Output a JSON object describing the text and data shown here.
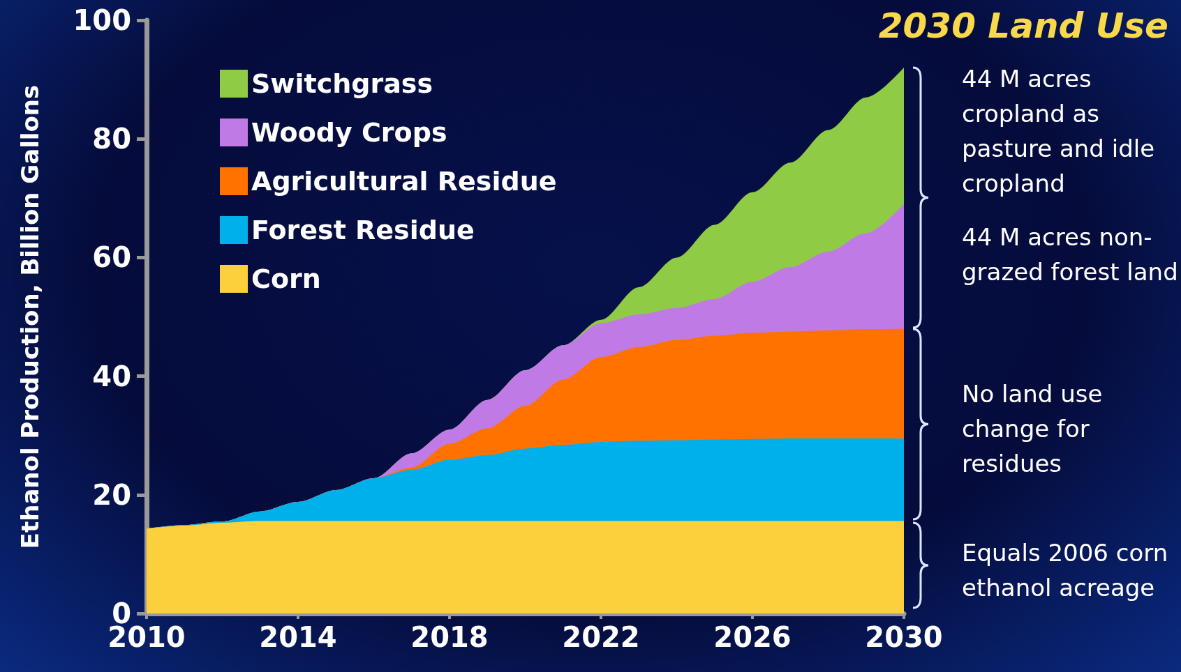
{
  "chart_data": {
    "type": "area",
    "stacked": true,
    "title": "2030 Land Use",
    "ylabel": "Ethanol Production, Billion Gallons",
    "x": [
      2010,
      2011,
      2012,
      2013,
      2014,
      2015,
      2016,
      2017,
      2018,
      2019,
      2020,
      2021,
      2022,
      2023,
      2024,
      2025,
      2026,
      2027,
      2028,
      2029,
      2030
    ],
    "series": [
      {
        "name": "Corn",
        "color": "#fcd03c",
        "values": [
          14.3,
          14.8,
          15.3,
          15.6,
          15.6,
          15.6,
          15.6,
          15.6,
          15.6,
          15.6,
          15.6,
          15.6,
          15.6,
          15.6,
          15.6,
          15.6,
          15.6,
          15.6,
          15.6,
          15.6,
          15.6
        ]
      },
      {
        "name": "Forest Residue",
        "color": "#00b0ea",
        "values": [
          0,
          0.1,
          0.2,
          1.6,
          3.2,
          5.2,
          7.2,
          8.6,
          10.3,
          11.1,
          12.2,
          12.8,
          13.3,
          13.5,
          13.6,
          13.7,
          13.8,
          13.9,
          13.9,
          13.9,
          13.9
        ]
      },
      {
        "name": "Agricultural Residue",
        "color": "#ff7200",
        "values": [
          0,
          0,
          0,
          0,
          0,
          0,
          0,
          0.4,
          2.7,
          4.5,
          7.2,
          11.0,
          14.3,
          15.8,
          16.9,
          17.5,
          17.9,
          18.0,
          18.2,
          18.4,
          18.5
        ]
      },
      {
        "name": "Woody Crops",
        "color": "#bf7ae6",
        "values": [
          0,
          0,
          0,
          0,
          0,
          0,
          0,
          2.4,
          2.4,
          4.8,
          6.0,
          5.8,
          5.7,
          5.5,
          5.4,
          6.2,
          8.6,
          10.9,
          13.3,
          16.2,
          21.0
        ]
      },
      {
        "name": "Switchgrass",
        "color": "#8fcb45",
        "values": [
          0,
          0,
          0,
          0,
          0,
          0,
          0,
          0,
          0,
          0,
          0,
          0,
          0.6,
          4.6,
          8.5,
          12.5,
          15.1,
          17.6,
          20.5,
          22.9,
          23.0
        ]
      }
    ],
    "xlim": [
      2010,
      2030
    ],
    "xticks": [
      2010,
      2014,
      2018,
      2022,
      2026,
      2030
    ],
    "ylim": [
      0,
      100
    ],
    "yticks": [
      0,
      20,
      40,
      60,
      80,
      100
    ],
    "grid": false,
    "legend": "top left",
    "annotations": [
      "44 M acres cropland as pasture and idle cropland",
      "44 M acres non-grazed forest land",
      "No land use change for residues",
      "Equals 2006 corn ethanol acreage"
    ]
  }
}
